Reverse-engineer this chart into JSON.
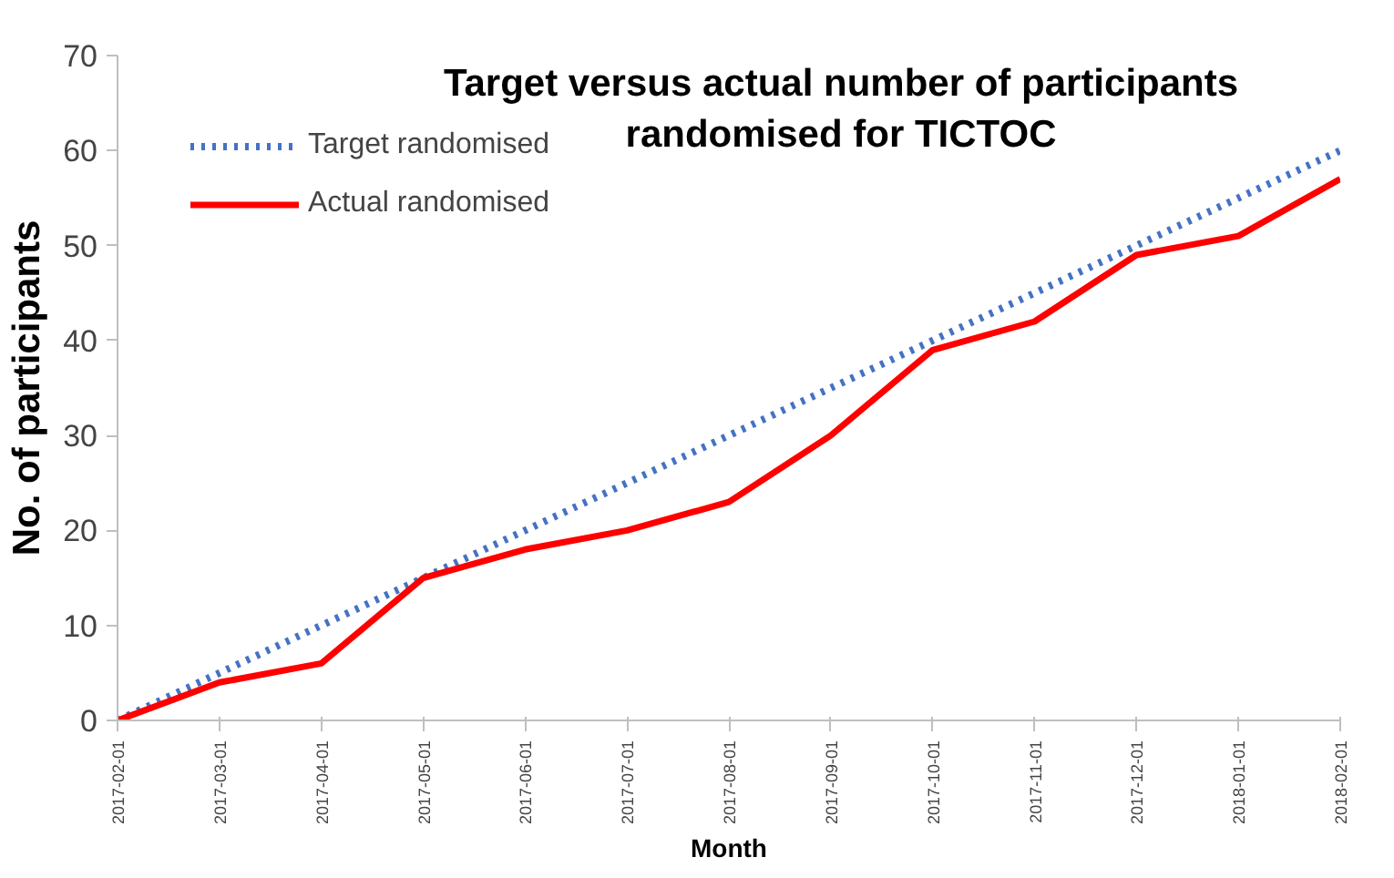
{
  "chart_data": {
    "type": "line",
    "title": "Target versus actual number of participants randomised for TICTOC",
    "xlabel": "Month",
    "ylabel": "No. of participants",
    "categories": [
      "2017-02-01",
      "2017-03-01",
      "2017-04-01",
      "2017-05-01",
      "2017-06-01",
      "2017-07-01",
      "2017-08-01",
      "2017-09-01",
      "2017-10-01",
      "2017-11-01",
      "2017-12-01",
      "2018-01-01",
      "2018-02-01"
    ],
    "series": [
      {
        "name": "Target randomised",
        "color": "#4472c4",
        "line_style": "dotted",
        "values": [
          0,
          5,
          10,
          15,
          20,
          25,
          30,
          35,
          40,
          45,
          50,
          55,
          60
        ]
      },
      {
        "name": "Actual randomised",
        "color": "#ff0000",
        "line_style": "solid",
        "values": [
          0,
          4,
          6,
          15,
          18,
          20,
          23,
          30,
          39,
          42,
          49,
          51,
          57
        ]
      }
    ],
    "ylim": [
      0,
      70
    ],
    "yticks": [
      0,
      10,
      20,
      30,
      40,
      50,
      60,
      70
    ],
    "grid": false,
    "legend": "top left",
    "marker": "none"
  }
}
